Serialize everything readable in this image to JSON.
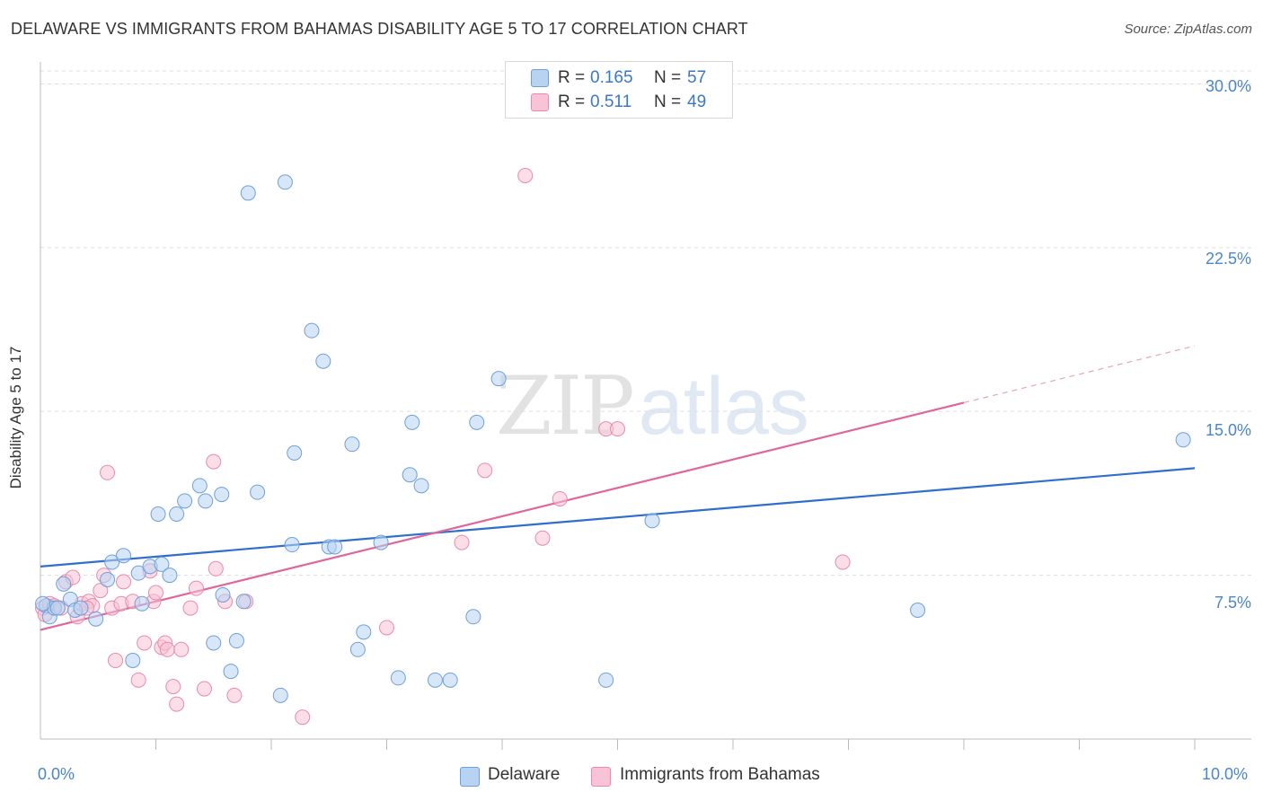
{
  "header": {
    "title": "DELAWARE VS IMMIGRANTS FROM BAHAMAS DISABILITY AGE 5 TO 17 CORRELATION CHART",
    "source": "Source: ZipAtlas.com"
  },
  "watermark": {
    "zip": "ZIP",
    "atlas": "atlas"
  },
  "legend": {
    "r_label": "R =",
    "n_label": "N =",
    "series": [
      {
        "r": "0.165",
        "n": "57"
      },
      {
        "r": "0.511",
        "n": "49"
      }
    ]
  },
  "bottom_legend": [
    "Delaware",
    "Immigrants from Bahamas"
  ],
  "chart_data": {
    "type": "scatter",
    "title": "DELAWARE VS IMMIGRANTS FROM BAHAMAS DISABILITY AGE 5 TO 17 CORRELATION CHART",
    "xlabel": "",
    "ylabel": "Disability Age 5 to 17",
    "xlim": [
      0,
      10
    ],
    "ylim": [
      0,
      31
    ],
    "y_ticks": [
      7.5,
      15.0,
      22.5,
      30.0
    ],
    "y_tick_labels": [
      "7.5%",
      "15.0%",
      "22.5%",
      "30.0%"
    ],
    "x_tick_labels": [
      "0.0%",
      "10.0%"
    ],
    "x_minor_ticks": [
      1,
      2,
      3,
      4,
      5,
      6,
      7,
      8,
      9,
      10
    ],
    "colors": {
      "delaware_fill": "#b8d3f2",
      "delaware_stroke": "#6f9fd8",
      "delaware_line": "#2f6fcc",
      "bahamas_fill": "#f8c3d6",
      "bahamas_stroke": "#e88aab",
      "bahamas_line": "#e0659a",
      "grid": "#dddddd",
      "axis": "#bbbbbb"
    },
    "series": [
      {
        "name": "Delaware",
        "r": 0.165,
        "n": 57,
        "trend": {
          "x0": 0.0,
          "y0": 7.9,
          "x1": 10.0,
          "y1": 12.4
        },
        "points": [
          [
            0.05,
            6.1
          ],
          [
            0.08,
            5.6
          ],
          [
            0.12,
            6.0
          ],
          [
            0.15,
            6.0
          ],
          [
            0.2,
            7.1
          ],
          [
            0.26,
            6.4
          ],
          [
            0.3,
            5.9
          ],
          [
            0.35,
            6.0
          ],
          [
            0.48,
            5.5
          ],
          [
            0.58,
            7.3
          ],
          [
            0.62,
            8.1
          ],
          [
            0.72,
            8.4
          ],
          [
            0.8,
            3.6
          ],
          [
            0.85,
            7.6
          ],
          [
            0.88,
            6.2
          ],
          [
            0.95,
            7.9
          ],
          [
            1.02,
            10.3
          ],
          [
            1.05,
            8.0
          ],
          [
            1.12,
            7.5
          ],
          [
            1.18,
            10.3
          ],
          [
            1.25,
            10.9
          ],
          [
            1.38,
            11.6
          ],
          [
            1.43,
            10.9
          ],
          [
            1.5,
            4.4
          ],
          [
            1.57,
            11.2
          ],
          [
            1.58,
            6.6
          ],
          [
            1.8,
            25.0
          ],
          [
            1.65,
            3.1
          ],
          [
            1.7,
            4.5
          ],
          [
            1.76,
            6.3
          ],
          [
            1.88,
            11.3
          ],
          [
            2.08,
            2.0
          ],
          [
            2.12,
            25.5
          ],
          [
            2.18,
            8.9
          ],
          [
            2.2,
            13.1
          ],
          [
            2.35,
            18.7
          ],
          [
            2.45,
            17.3
          ],
          [
            2.5,
            8.8
          ],
          [
            2.55,
            8.8
          ],
          [
            2.7,
            13.5
          ],
          [
            2.75,
            4.1
          ],
          [
            2.8,
            4.9
          ],
          [
            2.95,
            9.0
          ],
          [
            3.1,
            2.8
          ],
          [
            3.2,
            12.1
          ],
          [
            3.22,
            14.5
          ],
          [
            3.3,
            11.6
          ],
          [
            3.42,
            2.7
          ],
          [
            3.55,
            2.7
          ],
          [
            3.75,
            5.6
          ],
          [
            3.78,
            14.5
          ],
          [
            3.97,
            16.5
          ],
          [
            4.9,
            2.7
          ],
          [
            5.3,
            10.0
          ],
          [
            7.6,
            5.9
          ],
          [
            9.9,
            13.7
          ],
          [
            0.02,
            6.2
          ]
        ]
      },
      {
        "name": "Immigrants from Bahamas",
        "r": 0.511,
        "n": 49,
        "trend": {
          "x0": 0.0,
          "y0": 5.0,
          "x1": 8.0,
          "y1": 15.4,
          "dash_x1": 10.0,
          "dash_y1": 18.0
        },
        "points": [
          [
            0.02,
            6.0
          ],
          [
            0.04,
            5.7
          ],
          [
            0.08,
            6.2
          ],
          [
            0.12,
            6.1
          ],
          [
            0.18,
            6.0
          ],
          [
            0.22,
            7.2
          ],
          [
            0.28,
            7.4
          ],
          [
            0.32,
            5.6
          ],
          [
            0.36,
            6.2
          ],
          [
            0.42,
            6.3
          ],
          [
            0.45,
            6.1
          ],
          [
            0.52,
            6.8
          ],
          [
            0.55,
            7.5
          ],
          [
            0.58,
            12.2
          ],
          [
            0.62,
            6.0
          ],
          [
            0.65,
            3.6
          ],
          [
            0.7,
            6.2
          ],
          [
            0.72,
            7.2
          ],
          [
            0.8,
            6.3
          ],
          [
            0.85,
            2.7
          ],
          [
            0.9,
            4.4
          ],
          [
            0.95,
            7.7
          ],
          [
            0.98,
            6.3
          ],
          [
            1.0,
            6.7
          ],
          [
            1.05,
            4.2
          ],
          [
            1.08,
            4.4
          ],
          [
            1.1,
            4.1
          ],
          [
            1.15,
            2.4
          ],
          [
            1.18,
            1.6
          ],
          [
            1.22,
            4.1
          ],
          [
            1.3,
            6.0
          ],
          [
            1.35,
            6.9
          ],
          [
            1.42,
            2.3
          ],
          [
            1.5,
            12.7
          ],
          [
            1.52,
            7.8
          ],
          [
            1.6,
            6.3
          ],
          [
            1.68,
            2.0
          ],
          [
            1.78,
            6.3
          ],
          [
            2.27,
            1.0
          ],
          [
            3.0,
            5.1
          ],
          [
            3.65,
            9.0
          ],
          [
            3.85,
            12.3
          ],
          [
            4.2,
            25.8
          ],
          [
            4.35,
            9.2
          ],
          [
            4.5,
            11.0
          ],
          [
            4.9,
            14.2
          ],
          [
            5.0,
            14.2
          ],
          [
            6.95,
            8.1
          ],
          [
            0.4,
            6.0
          ]
        ]
      }
    ]
  }
}
